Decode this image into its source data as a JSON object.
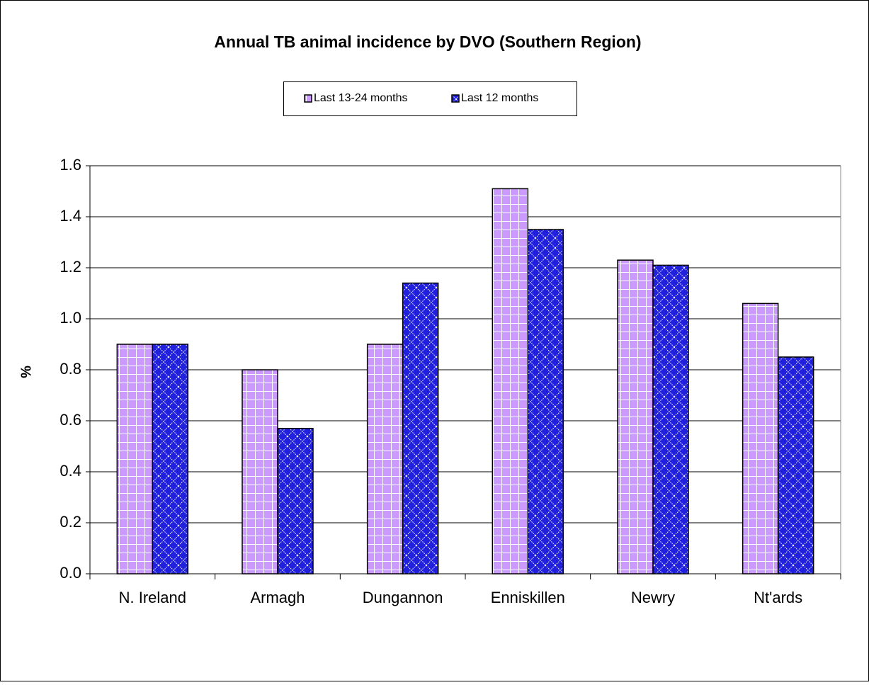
{
  "chart_data": {
    "type": "bar",
    "title": "Annual TB animal incidence by DVO (Southern Region)",
    "y_label": "%",
    "categories": [
      "N. Ireland",
      "Armagh",
      "Dungannon",
      "Enniskillen",
      "Newry",
      "Nt'ards"
    ],
    "series": [
      {
        "name": "Last 13-24 months",
        "color": "#cc99ff",
        "values": [
          0.9,
          0.8,
          0.9,
          1.51,
          1.23,
          1.06
        ]
      },
      {
        "name": "Last 12 months",
        "color": "#2020dd",
        "values": [
          0.9,
          0.57,
          1.14,
          1.35,
          1.21,
          0.85
        ]
      }
    ],
    "ylim": [
      0,
      1.6
    ],
    "yticks": [
      {
        "value": 0,
        "label": "0.0"
      },
      0.2,
      0.4,
      0.6,
      0.8,
      {
        "value": 1,
        "label": "1.0"
      },
      1.2,
      1.4,
      1.6
    ],
    "grid": true,
    "legend": "top"
  }
}
